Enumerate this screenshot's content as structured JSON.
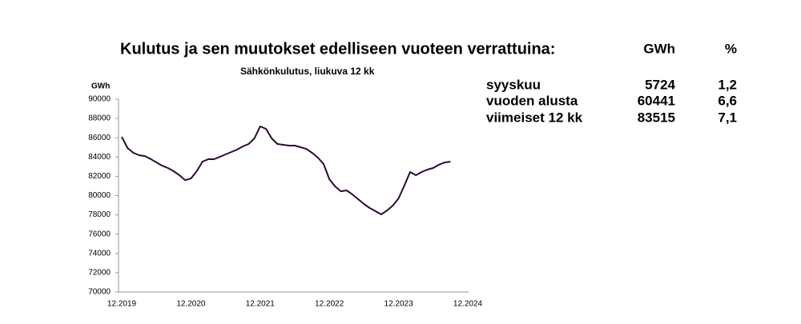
{
  "heading": "Kulutus ja sen muutokset edelliseen vuoteen verrattuina:",
  "table": {
    "columns": [
      "GWh",
      "%"
    ],
    "rows": [
      [
        "syyskuu",
        5724,
        "1,2"
      ],
      [
        "vuoden alusta",
        60441,
        "6,6"
      ],
      [
        "viimeiset 12 kk",
        83515,
        "7,1"
      ]
    ]
  },
  "chart_data": {
    "type": "line",
    "title": "Sähkönkulutus, liukuva 12 kk",
    "y_label": "GWh",
    "categories": [
      "12.2019",
      null,
      null,
      null,
      null,
      null,
      null,
      null,
      null,
      null,
      null,
      null,
      "12.2020",
      null,
      null,
      null,
      null,
      null,
      null,
      null,
      null,
      null,
      null,
      null,
      "12.2021",
      null,
      null,
      null,
      null,
      null,
      null,
      null,
      null,
      null,
      null,
      null,
      "12.2022",
      null,
      null,
      null,
      null,
      null,
      null,
      null,
      null,
      null,
      null,
      null,
      "12.2023",
      null,
      null,
      null,
      null,
      null,
      null,
      null,
      null,
      null,
      null,
      null,
      "12.2024"
    ],
    "series": [
      {
        "name": "Sähkönkulutus",
        "color": "#2b0a33",
        "values": [
          86100,
          84940,
          84440,
          84190,
          84100,
          83800,
          83440,
          83100,
          82860,
          82530,
          82120,
          81600,
          81780,
          82530,
          83520,
          83780,
          83780,
          84020,
          84270,
          84520,
          84770,
          85100,
          85350,
          85930,
          87180,
          86930,
          85930,
          85350,
          85270,
          85190,
          85190,
          85020,
          84850,
          84440,
          83940,
          83280,
          81700,
          80950,
          80450,
          80540,
          80120,
          79630,
          79130,
          78710,
          78380,
          78050,
          78460,
          78960,
          79710,
          81040,
          82450,
          82120,
          82450,
          82700,
          82860,
          83200,
          83440,
          83515,
          null,
          null,
          null
        ]
      }
    ],
    "ylim": [
      70000,
      90000
    ],
    "yticks": [
      70000,
      72000,
      74000,
      76000,
      78000,
      80000,
      82000,
      84000,
      86000,
      88000,
      90000
    ],
    "grid": false
  }
}
